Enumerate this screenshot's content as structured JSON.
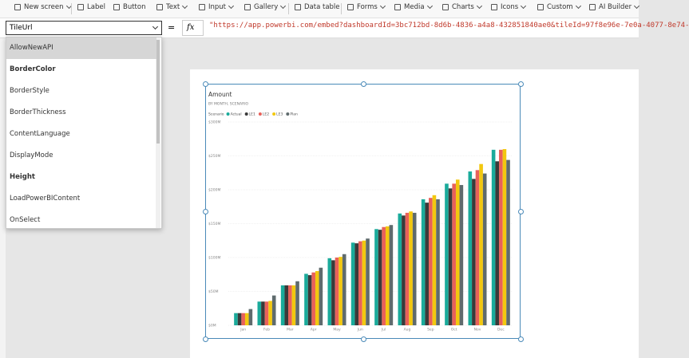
{
  "toolbar": {
    "items": [
      {
        "label": "New screen",
        "dropdown": true
      },
      {
        "label": "Label",
        "dropdown": false
      },
      {
        "label": "Button",
        "dropdown": false
      },
      {
        "label": "Text",
        "dropdown": true
      },
      {
        "label": "Input",
        "dropdown": true
      },
      {
        "label": "Gallery",
        "dropdown": true
      },
      {
        "label": "Data table",
        "dropdown": false
      },
      {
        "label": "Forms",
        "dropdown": true
      },
      {
        "label": "Media",
        "dropdown": true
      },
      {
        "label": "Charts",
        "dropdown": true
      },
      {
        "label": "Icons",
        "dropdown": true
      },
      {
        "label": "Custom",
        "dropdown": true
      },
      {
        "label": "AI Builder",
        "dropdown": true
      }
    ]
  },
  "formula_bar": {
    "property": "TileUrl",
    "equals": "=",
    "fx": "fx",
    "formula": "\"https://app.powerbi.com/embed?dashboardId=3bc712bd-8d6b-4836-a4a8-432851840ae0&tileId=97f8e96e-7e0a-4077-8e74-"
  },
  "property_list": {
    "items": [
      {
        "label": "AllowNewAPI",
        "bold": false,
        "highlighted": true
      },
      {
        "label": "BorderColor",
        "bold": true,
        "highlighted": false
      },
      {
        "label": "BorderStyle",
        "bold": false,
        "highlighted": false
      },
      {
        "label": "BorderThickness",
        "bold": false,
        "highlighted": false
      },
      {
        "label": "ContentLanguage",
        "bold": false,
        "highlighted": false
      },
      {
        "label": "DisplayMode",
        "bold": false,
        "highlighted": false
      },
      {
        "label": "Height",
        "bold": true,
        "highlighted": false
      },
      {
        "label": "LoadPowerBIContent",
        "bold": false,
        "highlighted": false
      },
      {
        "label": "OnSelect",
        "bold": false,
        "highlighted": false
      }
    ]
  },
  "chart_data": {
    "type": "bar",
    "title": "Amount",
    "subtitle": "BY MONTH, SCENARIO",
    "legend_title": "Scenario",
    "categories": [
      "Jan",
      "Feb",
      "Mar",
      "Apr",
      "May",
      "Jun",
      "Jul",
      "Aug",
      "Sep",
      "Oct",
      "Nov",
      "Dec"
    ],
    "series": [
      {
        "name": "Actual",
        "color": "#1aab9b",
        "values": [
          18,
          35,
          59,
          76,
          99,
          122,
          142,
          165,
          186,
          209,
          227,
          259
        ]
      },
      {
        "name": "LE1",
        "color": "#3a3a3a",
        "values": [
          18,
          35,
          59,
          74,
          96,
          121,
          141,
          162,
          181,
          202,
          216,
          242
        ]
      },
      {
        "name": "LE2",
        "color": "#e8615a",
        "values": [
          18,
          35,
          59,
          78,
          100,
          124,
          145,
          166,
          188,
          209,
          229,
          259
        ]
      },
      {
        "name": "LE3",
        "color": "#f2c80f",
        "values": [
          18,
          36,
          59,
          80,
          101,
          125,
          146,
          168,
          192,
          215,
          238,
          260
        ]
      },
      {
        "name": "Plan",
        "color": "#5f6b6d",
        "values": [
          24,
          44,
          65,
          85,
          105,
          128,
          148,
          166,
          186,
          207,
          224,
          244
        ]
      }
    ],
    "ylim": [
      0,
      300
    ],
    "yticks": [
      {
        "value": 0,
        "label": "$0M"
      },
      {
        "value": 50,
        "label": "$50M"
      },
      {
        "value": 100,
        "label": "$100M"
      },
      {
        "value": 150,
        "label": "$150M"
      },
      {
        "value": 200,
        "label": "$200M"
      },
      {
        "value": 250,
        "label": "$250M"
      },
      {
        "value": 300,
        "label": "$300M"
      }
    ],
    "grid": true
  }
}
